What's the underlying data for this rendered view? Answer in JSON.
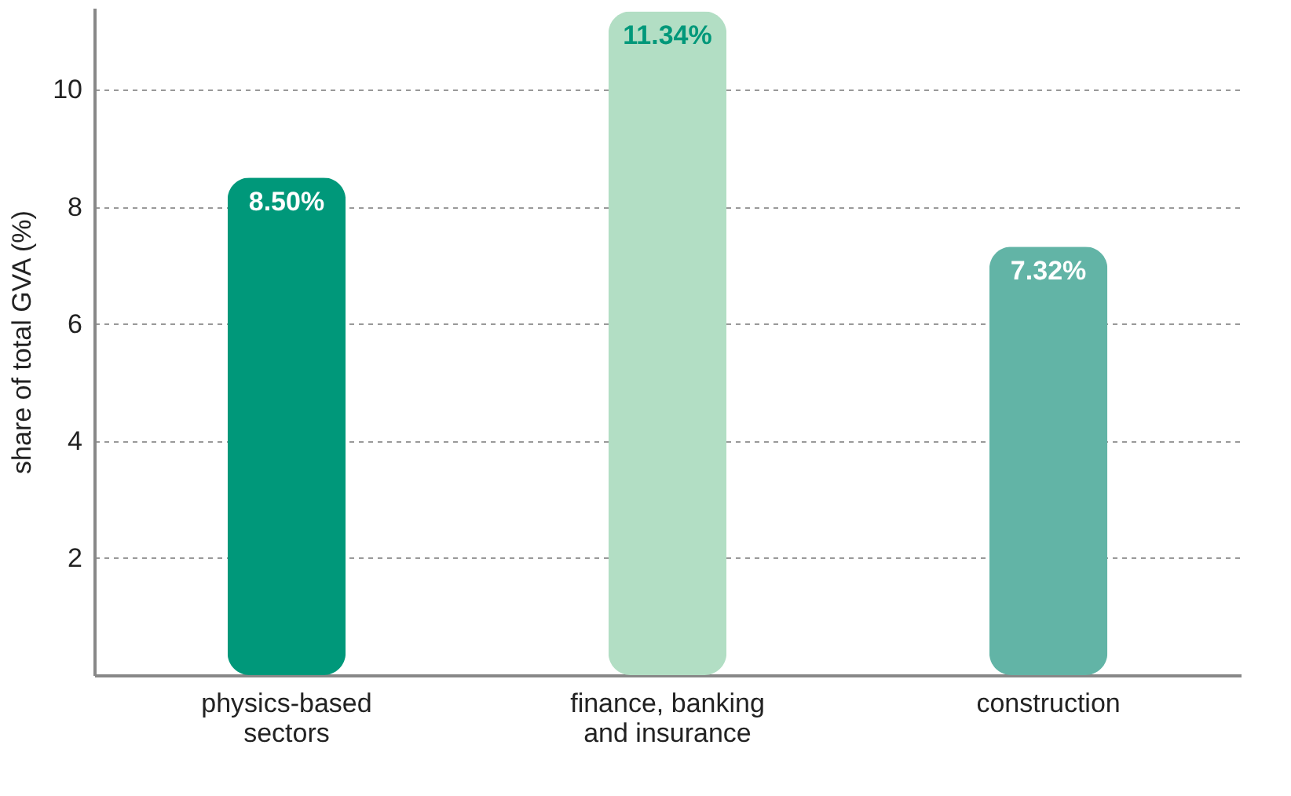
{
  "chart_data": {
    "type": "bar",
    "categories": [
      "physics-based sectors",
      "finance, banking and insurance",
      "construction"
    ],
    "values": [
      8.5,
      11.34,
      7.32
    ],
    "value_labels": [
      "8.50%",
      "11.34%",
      "7.32%"
    ],
    "colors": [
      "#00987a",
      "#b2dec4",
      "#62b4a6"
    ],
    "ylabel": "share of total GVA (%)",
    "ylim": [
      0,
      11.4
    ],
    "yticks": [
      2,
      4,
      6,
      8,
      10
    ],
    "grid": "y"
  }
}
